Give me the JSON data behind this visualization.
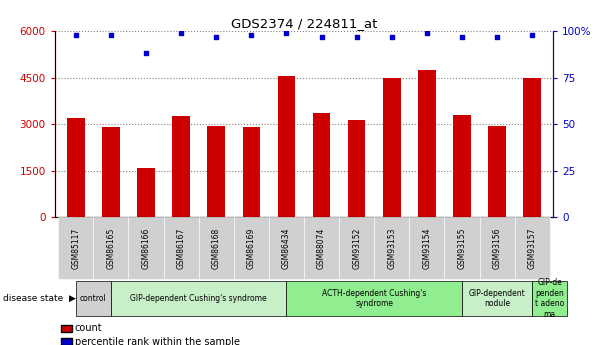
{
  "title": "GDS2374 / 224811_at",
  "samples": [
    "GSM85117",
    "GSM86165",
    "GSM86166",
    "GSM86167",
    "GSM86168",
    "GSM86169",
    "GSM86434",
    "GSM88074",
    "GSM93152",
    "GSM93153",
    "GSM93154",
    "GSM93155",
    "GSM93156",
    "GSM93157"
  ],
  "counts": [
    3200,
    2900,
    1600,
    3250,
    2950,
    2900,
    4550,
    3350,
    3150,
    4500,
    4750,
    3300,
    2950,
    4500
  ],
  "percentiles": [
    98,
    98,
    88,
    99,
    97,
    98,
    99,
    97,
    97,
    97,
    99,
    97,
    97,
    98
  ],
  "disease_groups": [
    {
      "label": "control",
      "start": 0,
      "end": 1,
      "color": "#d0d0d0"
    },
    {
      "label": "GIP-dependent Cushing's syndrome",
      "start": 1,
      "end": 6,
      "color": "#c8f0c8"
    },
    {
      "label": "ACTH-dependent Cushing's\nsyndrome",
      "start": 6,
      "end": 11,
      "color": "#90ee90"
    },
    {
      "label": "GIP-dependent\nnodule",
      "start": 11,
      "end": 13,
      "color": "#c8f0c8"
    },
    {
      "label": "GIP-de\npenden\nt adeno\nma",
      "start": 13,
      "end": 14,
      "color": "#90ee90"
    }
  ],
  "bar_color": "#cc0000",
  "dot_color": "#0000cc",
  "ylabel_left_color": "#cc0000",
  "ylabel_right_color": "#0000cc",
  "ylim_left": [
    0,
    6000
  ],
  "yticks_left": [
    0,
    1500,
    3000,
    4500,
    6000
  ],
  "ytick_labels_left": [
    "0",
    "1500",
    "3000",
    "4500",
    "6000"
  ],
  "yticks_right": [
    0,
    25,
    50,
    75,
    100
  ],
  "ytick_labels_right": [
    "0",
    "25",
    "50",
    "75",
    "100%"
  ],
  "bar_width": 0.5,
  "tick_label_bg": "#d0d0d0",
  "disease_state_label": "disease state",
  "legend_count_label": "count",
  "legend_percentile_label": "percentile rank within the sample",
  "fig_width": 6.08,
  "fig_height": 3.45,
  "dpi": 100
}
